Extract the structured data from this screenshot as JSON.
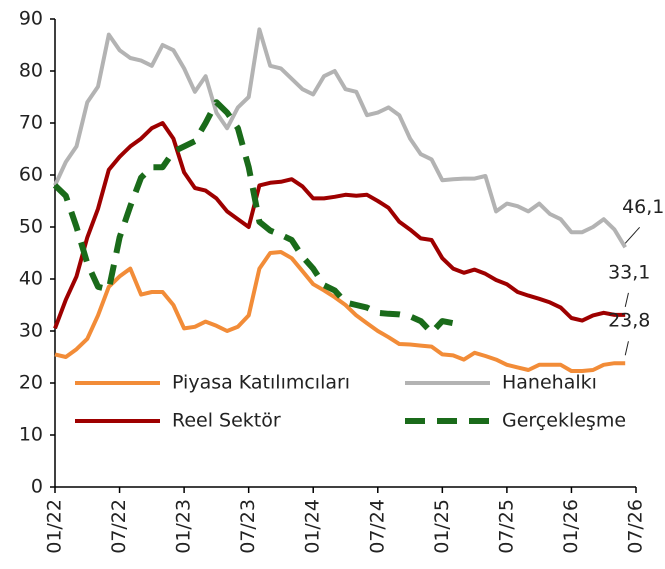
{
  "chart_data": {
    "type": "line",
    "categories": [
      "01/22",
      null,
      null,
      null,
      null,
      null,
      "07/22",
      null,
      null,
      null,
      null,
      null,
      "01/23",
      null,
      null,
      null,
      null,
      null,
      "07/23",
      null,
      null,
      null,
      null,
      null,
      "01/24",
      null,
      null,
      null,
      null,
      null,
      "07/24",
      null,
      null,
      null,
      null,
      null,
      "01/25",
      null,
      null,
      null,
      null,
      null,
      "07/25",
      null,
      null,
      null,
      null,
      null,
      "01/26",
      null,
      null,
      null,
      null,
      null,
      "07/26"
    ],
    "ylim": [
      0,
      90
    ],
    "yticks": [
      0,
      10,
      20,
      30,
      40,
      50,
      60,
      70,
      80,
      90
    ],
    "legend": "inside-bottom",
    "series": [
      {
        "name": "Piyasa Katılımcıları",
        "color": "#f28c38",
        "dash": false,
        "values": [
          25.5,
          25,
          26.5,
          28.5,
          33,
          38.5,
          40.5,
          42,
          37,
          37.5,
          37.5,
          35,
          30.5,
          30.8,
          31.8,
          31,
          30,
          30.8,
          33,
          42,
          45,
          45.2,
          44,
          41.5,
          39,
          37.8,
          36.5,
          35,
          33,
          31.5,
          30,
          28.8,
          27.5,
          27.4,
          27.2,
          27,
          25.5,
          25.3,
          24.5,
          25.8,
          25.2,
          24.5,
          23.5,
          23,
          22.5,
          23.5,
          23.5,
          23.5,
          22.3,
          22.3,
          22.5,
          23.5,
          23.8,
          23.8,
          null
        ],
        "value_labels": [
          null,
          null,
          null,
          null,
          null,
          null,
          null,
          null,
          null,
          null,
          null,
          null,
          null,
          null,
          null,
          null,
          null,
          null,
          null,
          null,
          null,
          null,
          null,
          null,
          null,
          null,
          null,
          null,
          null,
          null,
          null,
          null,
          null,
          null,
          null,
          null,
          null,
          null,
          null,
          null,
          null,
          null,
          null,
          null,
          null,
          null,
          null,
          null,
          null,
          null,
          null,
          null,
          null,
          "23,8",
          null
        ]
      },
      {
        "name": "Hanehalkı",
        "color": "#b3b3b3",
        "dash": false,
        "values": [
          58,
          62.5,
          65.5,
          74,
          77,
          87,
          84,
          82.5,
          82,
          81,
          85,
          84,
          80.5,
          76,
          79,
          72,
          69,
          73,
          75,
          88,
          81,
          80.5,
          78.5,
          76.5,
          75.5,
          79,
          80,
          76.5,
          76,
          71.5,
          72,
          73,
          71.5,
          67,
          64,
          63,
          59,
          59.2,
          59.3,
          59.3,
          59.8,
          53,
          54.5,
          54,
          53,
          54.5,
          52.5,
          51.5,
          49,
          49,
          50,
          51.5,
          49.5,
          46.1,
          null
        ],
        "value_labels": [
          null,
          null,
          null,
          null,
          null,
          null,
          null,
          null,
          null,
          null,
          null,
          null,
          null,
          null,
          null,
          null,
          null,
          null,
          null,
          null,
          null,
          null,
          null,
          null,
          null,
          null,
          null,
          null,
          null,
          null,
          null,
          null,
          null,
          null,
          null,
          null,
          null,
          null,
          null,
          null,
          null,
          null,
          null,
          null,
          null,
          null,
          null,
          null,
          null,
          null,
          null,
          null,
          null,
          "46,1",
          null
        ]
      },
      {
        "name": "Reel Sektör",
        "color": "#9e0000",
        "dash": false,
        "values": [
          30.5,
          36,
          40.5,
          48,
          53.5,
          61,
          63.5,
          65.5,
          67,
          69,
          70,
          67,
          60.5,
          57.5,
          57,
          55.5,
          53,
          51.5,
          50,
          58,
          58.5,
          58.7,
          59.2,
          57.8,
          55.5,
          55.5,
          55.8,
          56.2,
          56,
          56.2,
          55,
          53.7,
          51,
          49.5,
          47.8,
          47.5,
          44,
          42,
          41.2,
          41.8,
          41,
          39.8,
          39,
          37.5,
          36.8,
          36.2,
          35.5,
          34.5,
          32.5,
          32,
          33,
          33.5,
          33.1,
          33.1,
          null
        ],
        "value_labels": [
          null,
          null,
          null,
          null,
          null,
          null,
          null,
          null,
          null,
          null,
          null,
          null,
          null,
          null,
          null,
          null,
          null,
          null,
          null,
          null,
          null,
          null,
          null,
          null,
          null,
          null,
          null,
          null,
          null,
          null,
          null,
          null,
          null,
          null,
          null,
          null,
          null,
          null,
          null,
          null,
          null,
          null,
          null,
          null,
          null,
          null,
          null,
          null,
          null,
          null,
          null,
          null,
          null,
          "33,1",
          null
        ]
      },
      {
        "name": "Gerçekleşme",
        "color": "#1a6b1a",
        "dash": true,
        "values": [
          58,
          56,
          50,
          43,
          38.5,
          38,
          48,
          54,
          59.5,
          61.5,
          61.5,
          64.5,
          65.5,
          66.5,
          70,
          74,
          72,
          69,
          61.5,
          51,
          49.3,
          48.5,
          47.5,
          44.3,
          42,
          38.8,
          37.8,
          35.5,
          35,
          34.5,
          33.5,
          33.3,
          33.2,
          32.8,
          31.9,
          29.7,
          31.9,
          31.5,
          30.8,
          null,
          null,
          null,
          null,
          null,
          null,
          null,
          null,
          null,
          null,
          null,
          null,
          null,
          null,
          null,
          null
        ]
      }
    ]
  }
}
